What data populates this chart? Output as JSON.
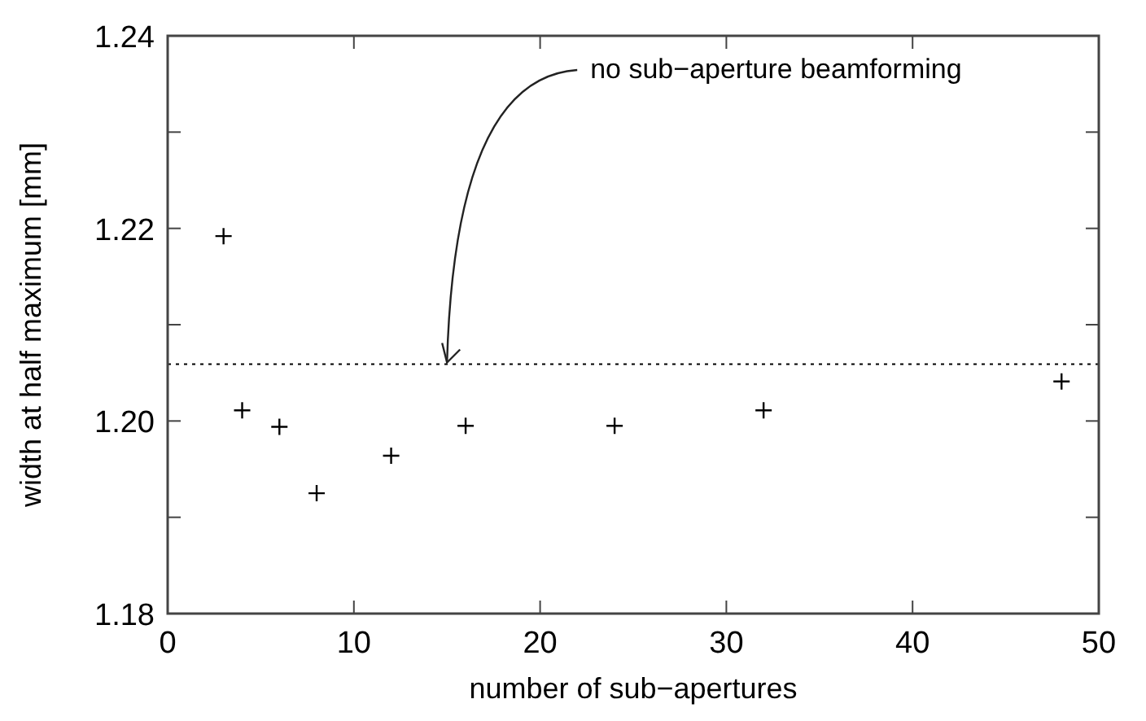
{
  "chart_data": {
    "type": "scatter",
    "xlabel": "number of sub−apertures",
    "ylabel": "width at half maximum [mm]",
    "x": [
      3,
      4,
      6,
      8,
      12,
      16,
      24,
      32,
      48
    ],
    "series": [
      {
        "color": "#000000",
        "values": [
          1.2192,
          1.2011,
          1.1994,
          1.1925,
          1.1964,
          1.1995,
          1.1995,
          1.2011,
          1.2041
        ]
      }
    ],
    "marker": "cross",
    "xlim": [
      0,
      50
    ],
    "xticks": [
      0,
      10,
      20,
      30,
      40,
      50
    ],
    "ylim": [
      1.18,
      1.24
    ],
    "yticks": [
      1.18,
      {
        "value": 1.19,
        "label": null
      },
      {
        "value": 1.2,
        "label": "1.20"
      },
      {
        "value": 1.21,
        "label": null
      },
      1.22,
      {
        "value": 1.23,
        "label": null
      },
      1.24
    ],
    "ref_lines": [
      {
        "axis": "y",
        "value": 1.2059,
        "color": "#000000",
        "line_style": "dotted"
      }
    ],
    "annotations": [
      {
        "text": "no sub−aperture beamforming",
        "x": 15,
        "y": 1.2059
      }
    ],
    "grid": false
  }
}
